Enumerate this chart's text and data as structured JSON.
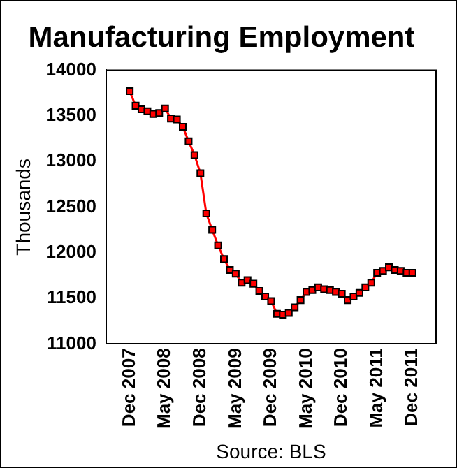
{
  "chart_data": {
    "type": "line",
    "title": "Manufacturing Employment",
    "ylabel": "Thousands",
    "categories": [
      "Dec 2007",
      null,
      null,
      null,
      null,
      null,
      "May 2008",
      null,
      null,
      null,
      null,
      null,
      "Dec 2008",
      null,
      null,
      null,
      null,
      null,
      "May 2009",
      null,
      null,
      null,
      null,
      null,
      "Dec 2009",
      null,
      null,
      null,
      null,
      null,
      "May 2010",
      null,
      null,
      null,
      null,
      null,
      "Dec 2010",
      null,
      null,
      null,
      null,
      null,
      "May 2011",
      null,
      null,
      null,
      null,
      null,
      "Dec 2011"
    ],
    "series": [
      {
        "color": "#ff0000",
        "values": [
          13770,
          13610,
          13570,
          13550,
          13520,
          13530,
          13580,
          13470,
          13460,
          13380,
          13220,
          13070,
          12870,
          12430,
          12250,
          12080,
          11930,
          11810,
          11770,
          11670,
          11700,
          11660,
          11580,
          11520,
          11470,
          11330,
          11320,
          11340,
          11400,
          11480,
          11570,
          11590,
          11620,
          11600,
          11590,
          11570,
          11550,
          11480,
          11520,
          11560,
          11620,
          11670,
          11780,
          11800,
          11840,
          11810,
          11800,
          11780,
          11780
        ]
      }
    ],
    "ylim": [
      11000,
      14000
    ],
    "yticks": [
      11000,
      11500,
      12000,
      12500,
      13000,
      13500,
      14000
    ],
    "marker": "square",
    "line_style": "solid",
    "grid": false,
    "legend": false,
    "annotations": [
      "Source: BLS"
    ]
  }
}
